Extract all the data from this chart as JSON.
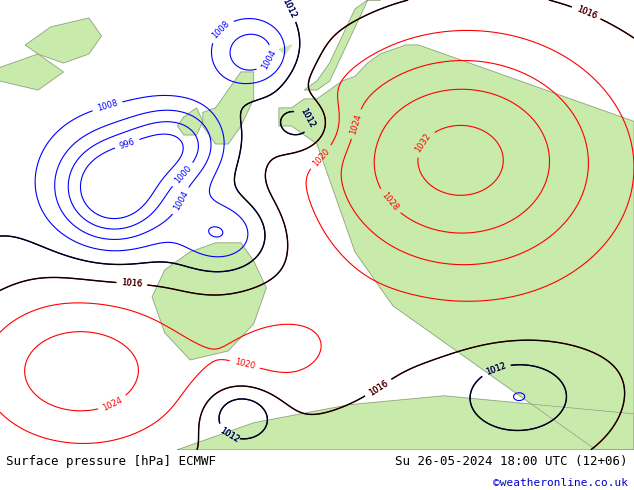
{
  "title_left": "Surface pressure [hPa] ECMWF",
  "title_right": "Su 26-05-2024 18:00 UTC (12+06)",
  "copyright": "©weatheronline.co.uk",
  "fig_width": 6.34,
  "fig_height": 4.9,
  "dpi": 100,
  "bottom_bar_color": "#ffffff",
  "map_bg_color": "#d8d8d8",
  "land_color": "#c8eaaa",
  "coast_color": "#888888",
  "title_fontsize": 9,
  "copyright_color": "#0000cc",
  "copyright_fontsize": 8,
  "contour_lw": 1.0,
  "label_fontsize": 6
}
